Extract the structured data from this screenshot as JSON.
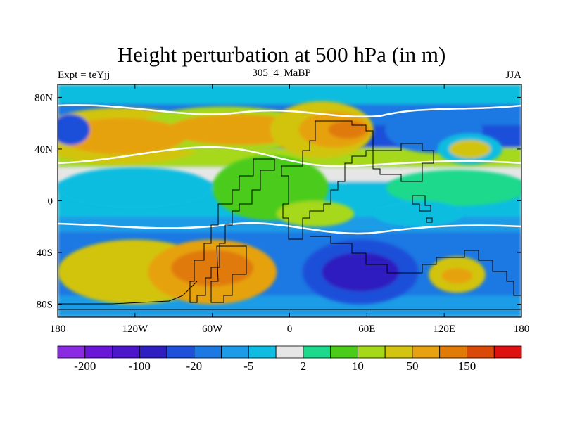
{
  "chart_data": {
    "type": "heatmap",
    "title": "Height perturbation at 500 hPa (in m)",
    "left_subtitle": "Expt = teYjj",
    "center_subtitle": "305_4_MaBP",
    "right_subtitle": "JJA",
    "xlim": [
      -180,
      180
    ],
    "ylim": [
      -90,
      90
    ],
    "x_ticks": [
      {
        "value": -180,
        "label": "180"
      },
      {
        "value": -120,
        "label": "120W"
      },
      {
        "value": -60,
        "label": "60W"
      },
      {
        "value": 0,
        "label": "0"
      },
      {
        "value": 60,
        "label": "60E"
      },
      {
        "value": 120,
        "label": "120E"
      },
      {
        "value": 180,
        "label": "180"
      }
    ],
    "y_ticks": [
      {
        "value": 80,
        "label": "80N"
      },
      {
        "value": 40,
        "label": "40N"
      },
      {
        "value": 0,
        "label": "0"
      },
      {
        "value": -40,
        "label": "40S"
      },
      {
        "value": -80,
        "label": "80S"
      }
    ],
    "colorbar": {
      "colors": [
        "#8a2be2",
        "#6a16d8",
        "#4b17c8",
        "#2f1fc0",
        "#1e50d9",
        "#1e78e2",
        "#1e9be6",
        "#10bde0",
        "#e6e6e6",
        "#1ed98c",
        "#4ccc1a",
        "#a6d81a",
        "#d2c410",
        "#e6a210",
        "#e07a08",
        "#d94a0a",
        "#de1010"
      ],
      "levels": [
        "-200",
        "",
        "-100",
        "",
        "-20",
        "",
        "-5",
        "",
        "2",
        "",
        "10",
        "",
        "50",
        "",
        "150",
        ""
      ],
      "shown_labels": [
        {
          "index": 0,
          "label": "-200"
        },
        {
          "index": 2,
          "label": "-100"
        },
        {
          "index": 4,
          "label": "-20"
        },
        {
          "index": 6,
          "label": "-5"
        },
        {
          "index": 8,
          "label": "2"
        },
        {
          "index": 10,
          "label": "10"
        },
        {
          "index": 12,
          "label": "50"
        },
        {
          "index": 14,
          "label": "150"
        }
      ]
    },
    "field_blobs": [
      {
        "lon": -130,
        "lat": 50,
        "rlon": 70,
        "rlat": 22,
        "color": "#d2c410"
      },
      {
        "lon": -50,
        "lat": 55,
        "rlon": 70,
        "rlat": 18,
        "color": "#a6d81a"
      },
      {
        "lon": -130,
        "lat": 50,
        "rlon": 50,
        "rlat": 14,
        "color": "#e6a210"
      },
      {
        "lon": -40,
        "lat": 55,
        "rlon": 55,
        "rlat": 12,
        "color": "#e6a210"
      },
      {
        "lon": 25,
        "lat": 55,
        "rlon": 40,
        "rlat": 22,
        "color": "#d2c410"
      },
      {
        "lon": 35,
        "lat": 55,
        "rlon": 28,
        "rlat": 14,
        "color": "#e6a210"
      },
      {
        "lon": 45,
        "lat": 55,
        "rlon": 15,
        "rlat": 7,
        "color": "#e07a08"
      },
      {
        "lon": 112,
        "lat": 55,
        "rlon": 38,
        "rlat": 18,
        "color": "#1e78e2"
      },
      {
        "lon": -170,
        "lat": 55,
        "rlon": 15,
        "rlat": 12,
        "color": "#1e50d9"
      },
      {
        "lon": 140,
        "lat": 40,
        "rlon": 25,
        "rlat": 12,
        "color": "#10bde0"
      },
      {
        "lon": 140,
        "lat": 40,
        "rlon": 16,
        "rlat": 7,
        "color": "#d2c410"
      },
      {
        "lon": -120,
        "lat": 10,
        "rlon": 60,
        "rlat": 16,
        "color": "#10bde0"
      },
      {
        "lon": 130,
        "lat": 10,
        "rlon": 55,
        "rlat": 14,
        "color": "#1ed98c"
      },
      {
        "lon": 100,
        "lat": -10,
        "rlon": 35,
        "rlat": 10,
        "color": "#10bde0"
      },
      {
        "lon": -15,
        "lat": 10,
        "rlon": 45,
        "rlat": 25,
        "color": "#4ccc1a"
      },
      {
        "lon": 20,
        "lat": -10,
        "rlon": 30,
        "rlat": 10,
        "color": "#a6d81a"
      },
      {
        "lon": -120,
        "lat": -55,
        "rlon": 60,
        "rlat": 25,
        "color": "#d2c410"
      },
      {
        "lon": -60,
        "lat": -55,
        "rlon": 50,
        "rlat": 25,
        "color": "#e6a210"
      },
      {
        "lon": -60,
        "lat": -52,
        "rlon": 32,
        "rlat": 14,
        "color": "#e07a08"
      },
      {
        "lon": 55,
        "lat": -55,
        "rlon": 45,
        "rlat": 25,
        "color": "#1e50d9"
      },
      {
        "lon": 55,
        "lat": -55,
        "rlon": 30,
        "rlat": 15,
        "color": "#2f1fc0"
      },
      {
        "lon": 130,
        "lat": -57,
        "rlon": 22,
        "rlat": 14,
        "color": "#d2c410"
      },
      {
        "lon": 130,
        "lat": -58,
        "rlon": 12,
        "rlat": 6,
        "color": "#e6a210"
      }
    ]
  }
}
